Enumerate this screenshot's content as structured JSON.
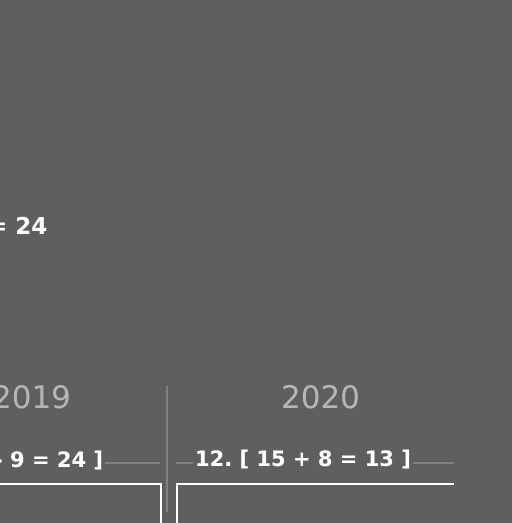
{
  "top_equation": "= 24",
  "columns": [
    {
      "year": "2019",
      "equation": "- 9 = 24 ]"
    },
    {
      "year": "2020",
      "equation": "12. [ 15 + 8 = 13 ]"
    }
  ]
}
